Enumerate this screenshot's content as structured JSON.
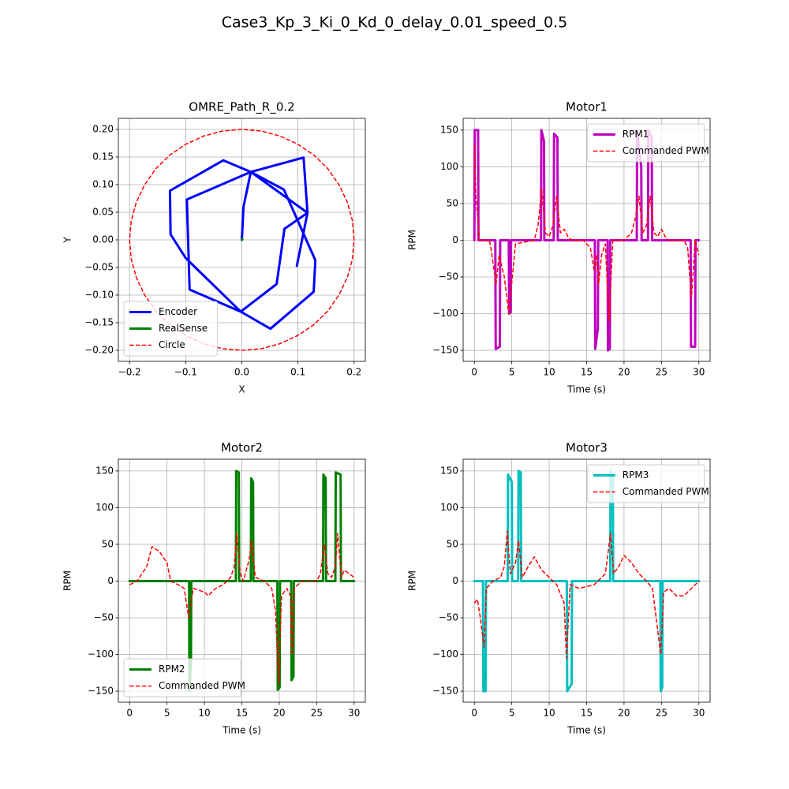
{
  "title": "Case3_Kp_3_Ki_0_Kd_0_delay_0.01_speed_0.5",
  "chart_data": [
    {
      "type": "line",
      "title": "OMRE_Path_R_0.2",
      "xlabel": "X",
      "ylabel": "Y",
      "xlim": [
        -0.22,
        0.22
      ],
      "ylim": [
        -0.22,
        0.22
      ],
      "xticks": [
        {
          "value": -0.2,
          "label": "−0.2"
        },
        {
          "value": -0.1,
          "label": "−0.1"
        },
        {
          "value": 0,
          "label": "0.0"
        },
        0.1,
        0.2
      ],
      "yticks": [
        {
          "value": -0.2,
          "label": "−0.20"
        },
        {
          "value": -0.15,
          "label": "−0.15"
        },
        {
          "value": -0.1,
          "label": "−0.10"
        },
        {
          "value": -0.05,
          "label": "−0.05"
        },
        {
          "value": 0,
          "label": "0.00"
        },
        0.05,
        {
          "value": 0.1,
          "label": "0.10"
        },
        0.15,
        {
          "value": 0.2,
          "label": "0.20"
        }
      ],
      "grid": true,
      "legend": "lower left",
      "series": [
        {
          "name": "Encoder",
          "color": "#0000ff",
          "linestyle": "solid",
          "x": [
            0,
            0.003,
            0.016,
            0.11,
            0.117,
            0.076,
            0.062,
            -0.002,
            -0.093,
            -0.098,
            0.016,
            0.075,
            0.131,
            0.128,
            0.051,
            -0.002,
            -0.1,
            -0.127,
            -0.128,
            -0.033,
            0.016,
            0.117,
            0.098
          ],
          "values": [
            0,
            0.06,
            0.123,
            0.149,
            0.049,
            0.02,
            -0.08,
            -0.13,
            -0.09,
            0.073,
            0.123,
            0.091,
            -0.037,
            -0.094,
            -0.161,
            -0.13,
            -0.033,
            0.01,
            0.089,
            0.144,
            0.123,
            0.049,
            -0.047
          ]
        },
        {
          "name": "RealSense",
          "color": "#008000",
          "linestyle": "solid",
          "x": [
            0,
            0.001
          ],
          "values": [
            0,
            0.001
          ]
        },
        {
          "name": "Circle",
          "color": "#ff0000",
          "linestyle": "dashed",
          "x": [
            0.2,
            0.197,
            0.188,
            0.173,
            0.153,
            0.129,
            0.1,
            0.068,
            0.035,
            0,
            -0.035,
            -0.068,
            -0.1,
            -0.129,
            -0.153,
            -0.173,
            -0.188,
            -0.197,
            -0.2,
            -0.197,
            -0.188,
            -0.173,
            -0.153,
            -0.129,
            -0.1,
            -0.068,
            -0.035,
            0,
            0.035,
            0.068,
            0.1,
            0.129,
            0.153,
            0.173,
            0.188,
            0.197,
            0.2
          ],
          "values": [
            0,
            0.035,
            0.068,
            0.1,
            0.129,
            0.153,
            0.173,
            0.188,
            0.197,
            0.2,
            0.197,
            0.188,
            0.173,
            0.153,
            0.129,
            0.1,
            0.068,
            0.035,
            0,
            -0.035,
            -0.068,
            -0.1,
            -0.129,
            -0.153,
            -0.173,
            -0.188,
            -0.197,
            -0.2,
            -0.197,
            -0.188,
            -0.173,
            -0.153,
            -0.129,
            -0.1,
            -0.068,
            -0.035,
            0
          ]
        }
      ]
    },
    {
      "type": "line",
      "title": "Motor1",
      "xlabel": "Time (s)",
      "ylabel": "RPM",
      "xlim": [
        -1.5,
        31.5
      ],
      "ylim": [
        -165,
        166
      ],
      "xticks": [
        0,
        5,
        10,
        15,
        20,
        25,
        30
      ],
      "yticks": [
        {
          "value": -150,
          "label": "−150"
        },
        {
          "value": -100,
          "label": "−100"
        },
        {
          "value": -50,
          "label": "−50"
        },
        0,
        50,
        100,
        150
      ],
      "grid": true,
      "legend": "upper right",
      "series": [
        {
          "name": "RPM1",
          "color": "#bf00bf",
          "linestyle": "solid",
          "x": [
            0,
            0.05,
            0.5,
            0.55,
            2.8,
            2.85,
            3.4,
            3.45,
            4.6,
            4.65,
            4.85,
            4.9,
            8.9,
            8.95,
            9.3,
            9.35,
            10.6,
            10.65,
            11.1,
            11.15,
            16.1,
            16.15,
            16.5,
            16.55,
            17.8,
            17.85,
            18.1,
            18.15,
            21.7,
            21.75,
            22.3,
            22.35,
            23.2,
            23.25,
            23.7,
            23.75,
            28.9,
            28.95,
            29.5,
            29.55,
            30
          ],
          "values": [
            0,
            150,
            150,
            0,
            0,
            -148,
            -145,
            0,
            0,
            -100,
            -98,
            0,
            0,
            150,
            135,
            0,
            0,
            145,
            140,
            0,
            0,
            -148,
            -120,
            0,
            0,
            -150,
            -148,
            0,
            0,
            148,
            100,
            0,
            0,
            150,
            140,
            0,
            0,
            -145,
            -145,
            0,
            0
          ]
        },
        {
          "name": "Commanded PWM",
          "color": "#ff0000",
          "linestyle": "dashed",
          "x": [
            0,
            0.2,
            0.7,
            2,
            2.2,
            2.9,
            3.3,
            4,
            4.6,
            5.5,
            8,
            8.5,
            9,
            9.5,
            10,
            10.5,
            11,
            11.5,
            12,
            12.5,
            13,
            14.5,
            15,
            15.5,
            16,
            16.3,
            16.6,
            17,
            17.5,
            18,
            18.5,
            20,
            20.5,
            21,
            21.5,
            22,
            22.5,
            23,
            23.5,
            24,
            24.5,
            25,
            25.5,
            26,
            28,
            28.5,
            29,
            29.5,
            30
          ],
          "values": [
            130,
            60,
            0,
            0,
            -10,
            -60,
            -20,
            -50,
            -100,
            -5,
            0,
            20,
            70,
            10,
            5,
            20,
            60,
            10,
            15,
            5,
            0,
            0,
            -5,
            -10,
            -40,
            -20,
            -60,
            -20,
            -5,
            -110,
            0,
            0,
            5,
            10,
            30,
            60,
            10,
            20,
            60,
            10,
            5,
            15,
            5,
            0,
            0,
            -10,
            -80,
            0,
            -20
          ]
        }
      ]
    },
    {
      "type": "line",
      "title": "Motor2",
      "xlabel": "Time (s)",
      "ylabel": "RPM",
      "xlim": [
        -1.5,
        31.5
      ],
      "ylim": [
        -165,
        166
      ],
      "xticks": [
        0,
        5,
        10,
        15,
        20,
        25,
        30
      ],
      "yticks": [
        {
          "value": -150,
          "label": "−150"
        },
        {
          "value": -100,
          "label": "−100"
        },
        {
          "value": -50,
          "label": "−50"
        },
        0,
        50,
        100,
        150
      ],
      "grid": true,
      "legend": "lower left",
      "series": [
        {
          "name": "RPM2",
          "color": "#008000",
          "linestyle": "solid",
          "x": [
            0,
            7.95,
            8,
            8.2,
            8.25,
            14.2,
            14.25,
            14.6,
            14.65,
            16.2,
            16.25,
            16.5,
            16.55,
            19.75,
            19.8,
            20.05,
            20.1,
            21.6,
            21.65,
            21.9,
            21.95,
            25.85,
            25.9,
            26.2,
            26.25,
            27.5,
            27.55,
            28.2,
            28.25,
            30
          ],
          "values": [
            0,
            0,
            -150,
            -110,
            0,
            0,
            150,
            148,
            0,
            0,
            140,
            135,
            0,
            0,
            -148,
            -145,
            0,
            0,
            -135,
            -130,
            0,
            0,
            145,
            140,
            0,
            0,
            148,
            145,
            0,
            0
          ]
        },
        {
          "name": "Commanded PWM",
          "color": "#ff0000",
          "linestyle": "dashed",
          "x": [
            0,
            1,
            2.3,
            3,
            4,
            5,
            5.5,
            6.5,
            7.3,
            7.9,
            8.5,
            10,
            10.5,
            11.5,
            12.5,
            13.5,
            14,
            14.3,
            14.8,
            15.2,
            16,
            16.3,
            16.8,
            18,
            19,
            19.5,
            19.9,
            20.3,
            21,
            21.5,
            21.7,
            22,
            23,
            25,
            25.5,
            26,
            26.5,
            27,
            27.5,
            27.8,
            28.3,
            28.7,
            30
          ],
          "values": [
            -5,
            0,
            20,
            47,
            40,
            25,
            0,
            -5,
            -10,
            -50,
            -10,
            -15,
            -20,
            -10,
            -5,
            5,
            20,
            65,
            10,
            0,
            30,
            55,
            5,
            0,
            -10,
            -40,
            -140,
            -20,
            -10,
            -20,
            -100,
            -10,
            0,
            0,
            10,
            50,
            10,
            5,
            20,
            65,
            5,
            15,
            5
          ]
        }
      ]
    },
    {
      "type": "line",
      "title": "Motor3",
      "xlabel": "Time (s)",
      "ylabel": "RPM",
      "xlim": [
        -1.5,
        31.5
      ],
      "ylim": [
        -165,
        166
      ],
      "xticks": [
        0,
        5,
        10,
        15,
        20,
        25,
        30
      ],
      "yticks": [
        {
          "value": -150,
          "label": "−150"
        },
        {
          "value": -100,
          "label": "−100"
        },
        {
          "value": -50,
          "label": "−50"
        },
        0,
        50,
        100,
        150
      ],
      "grid": true,
      "legend": "upper right",
      "series": [
        {
          "name": "RPM3",
          "color": "#00bfbf",
          "linestyle": "solid",
          "x": [
            0,
            1.15,
            1.2,
            1.5,
            1.55,
            4.45,
            4.5,
            5,
            5.05,
            5.85,
            5.9,
            6.2,
            6.25,
            12.35,
            12.4,
            13,
            13.05,
            18.15,
            18.2,
            18.5,
            18.55,
            24.85,
            24.9,
            25.1,
            25.15,
            30
          ],
          "values": [
            0,
            0,
            -150,
            -150,
            0,
            0,
            145,
            135,
            0,
            0,
            150,
            148,
            0,
            0,
            -150,
            -140,
            0,
            0,
            150,
            140,
            0,
            0,
            -150,
            -145,
            0,
            0
          ]
        },
        {
          "name": "Commanded PWM",
          "color": "#ff0000",
          "linestyle": "dashed",
          "x": [
            0,
            0.4,
            0.8,
            1.3,
            1.6,
            2.5,
            3.5,
            4,
            4.4,
            4.8,
            5.5,
            5.9,
            6.4,
            7.2,
            8,
            9,
            10,
            11,
            12,
            12.3,
            12.8,
            14,
            16,
            17.5,
            18.2,
            18.6,
            19.3,
            20,
            21,
            22,
            23,
            23.8,
            24.9,
            25.3,
            26,
            27,
            28,
            29.5,
            30
          ],
          "values": [
            -30,
            -25,
            -50,
            -90,
            -10,
            0,
            5,
            20,
            68,
            10,
            25,
            55,
            5,
            20,
            33,
            15,
            5,
            -5,
            -30,
            -105,
            -5,
            -10,
            -5,
            10,
            65,
            10,
            20,
            35,
            25,
            10,
            0,
            -10,
            -100,
            -15,
            -10,
            -20,
            -20,
            -5,
            0
          ]
        }
      ]
    }
  ]
}
